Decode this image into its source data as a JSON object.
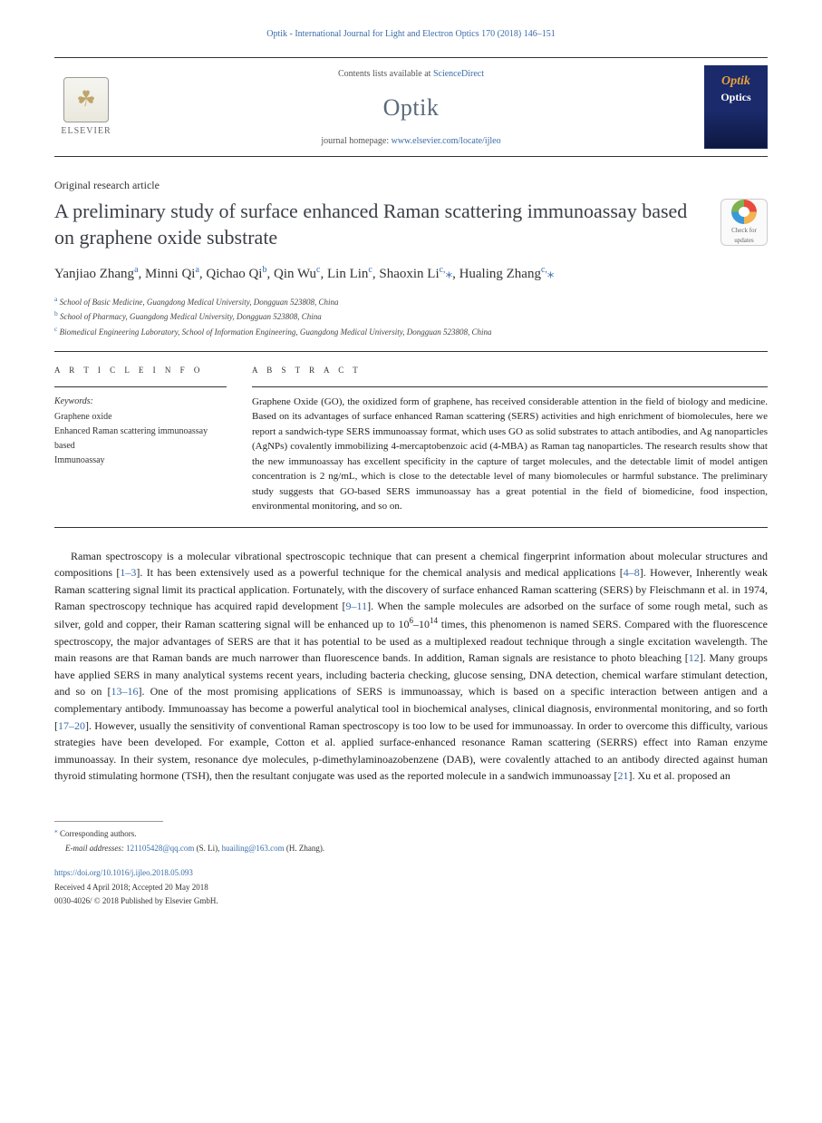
{
  "citation": "Optik - International Journal for Light and Electron Optics 170 (2018) 146–151",
  "header": {
    "contents_prefix": "Contents lists available at ",
    "contents_link": "ScienceDirect",
    "journal": "Optik",
    "homepage_prefix": "journal homepage: ",
    "homepage_url": "www.elsevier.com/locate/ijleo",
    "publisher_label": "ELSEVIER",
    "cover_line1": "Optik",
    "cover_line2": "Optics"
  },
  "crossmark": {
    "line1": "Check for",
    "line2": "updates"
  },
  "article_type": "Original research article",
  "title": "A preliminary study of surface enhanced Raman scattering immunoassay based on graphene oxide substrate",
  "authors_html": "Yanjiao Zhang<sup>a</sup>, Minni Qi<sup>a</sup>, Qichao Qi<sup>b</sup>, Qin Wu<sup>c</sup>, Lin Lin<sup>c</sup>, Shaoxin Li<sup>c,</sup><span class='corr'>⁎</span>, Hualing Zhang<sup>c,</sup><span class='corr'>⁎</span>",
  "affiliations": [
    {
      "sup": "a",
      "text": "School of Basic Medicine, Guangdong Medical University, Dongguan 523808, China"
    },
    {
      "sup": "b",
      "text": "School of Pharmacy, Guangdong Medical University, Dongguan 523808, China"
    },
    {
      "sup": "c",
      "text": "Biomedical Engineering Laboratory, School of Information Engineering, Guangdong Medical University, Dongguan 523808, China"
    }
  ],
  "article_info_head": "A R T I C L E  I N F O",
  "abstract_head": "A B S T R A C T",
  "keywords_label": "Keywords:",
  "keywords": [
    "Graphene oxide",
    "Enhanced Raman scattering immunoassay based",
    "Immunoassay"
  ],
  "abstract": "Graphene Oxide (GO), the oxidized form of graphene, has received considerable attention in the field of biology and medicine. Based on its advantages of surface enhanced Raman scattering (SERS) activities and high enrichment of biomolecules, here we report a sandwich-type SERS immunoassay format, which uses GO as solid substrates to attach antibodies, and Ag nanoparticles (AgNPs) covalently immobilizing 4-mercaptobenzoic acid (4-MBA) as Raman tag nanoparticles. The research results show that the new immunoassay has excellent specificity in the capture of target molecules, and the detectable limit of model antigen concentration is 2 ng/mL, which is close to the detectable level of many biomolecules or harmful substance. The preliminary study suggests that GO-based SERS immunoassay has a great potential in the field of biomedicine, food inspection, environmental monitoring, and so on.",
  "body_html": "Raman spectroscopy is a molecular vibrational spectroscopic technique that can present a chemical fingerprint information about molecular structures and compositions [<a class='ref'>1–3</a>]. It has been extensively used as a powerful technique for the chemical analysis and medical applications [<a class='ref'>4–8</a>]. However, Inherently weak Raman scattering signal limit its practical application. Fortunately, with the discovery of surface enhanced Raman scattering (SERS) by Fleischmann et al. in 1974, Raman spectroscopy technique has acquired rapid development [<a class='ref'>9–11</a>]. When the sample molecules are adsorbed on the surface of some rough metal, such as silver, gold and copper, their Raman scattering signal will be enhanced up to 10<sup>6</sup>–10<sup>14</sup> times, this phenomenon is named SERS. Compared with the fluorescence spectroscopy, the major advantages of SERS are that it has potential to be used as a multiplexed readout technique through a single excitation wavelength. The main reasons are that Raman bands are much narrower than fluorescence bands. In addition, Raman signals are resistance to photo bleaching [<a class='ref'>12</a>]. Many groups have applied SERS in many analytical systems recent years, including bacteria checking, glucose sensing, DNA detection, chemical warfare stimulant detection, and so on [<a class='ref'>13–16</a>]. One of the most promising applications of SERS is immunoassay, which is based on a specific interaction between antigen and a complementary antibody. Immunoassay has become a powerful analytical tool in biochemical analyses, clinical diagnosis, environmental monitoring, and so forth [<a class='ref'>17–20</a>]. However, usually the sensitivity of conventional Raman spectroscopy is too low to be used for immunoassay. In order to overcome this difficulty, various strategies have been developed. For example, Cotton et al. applied surface-enhanced resonance Raman scattering (SERRS) effect into Raman enzyme immunoassay. In their system, resonance dye molecules, p-dimethylaminoazobenzene (DAB), were covalently attached to an antibody directed against human thyroid stimulating hormone (TSH), then the resultant conjugate was used as the reported molecule in a sandwich immunoassay [<a class='ref'>21</a>]. Xu et al. proposed an",
  "footer": {
    "corr_label": "Corresponding authors.",
    "emails_prefix": "E-mail addresses: ",
    "emails": [
      {
        "addr": "121105428@qq.com",
        "who": "(S. Li)"
      },
      {
        "addr": "huailing@163.com",
        "who": "(H. Zhang)"
      }
    ],
    "doi": "https://doi.org/10.1016/j.ijleo.2018.05.093",
    "received": "Received 4 April 2018; Accepted 20 May 2018",
    "copyright": "0030-4026/ © 2018 Published by Elsevier GmbH."
  },
  "colors": {
    "link": "#3a6ca8",
    "title": "#3b3f46",
    "journal_name": "#5a6a7a",
    "cover_bg": "#1a2a6b",
    "cover_accent": "#e8a23c"
  },
  "typography": {
    "body_pt": 12,
    "title_pt": 22,
    "journal_pt": 26,
    "abstract_pt": 11,
    "fine_pt": 9
  }
}
